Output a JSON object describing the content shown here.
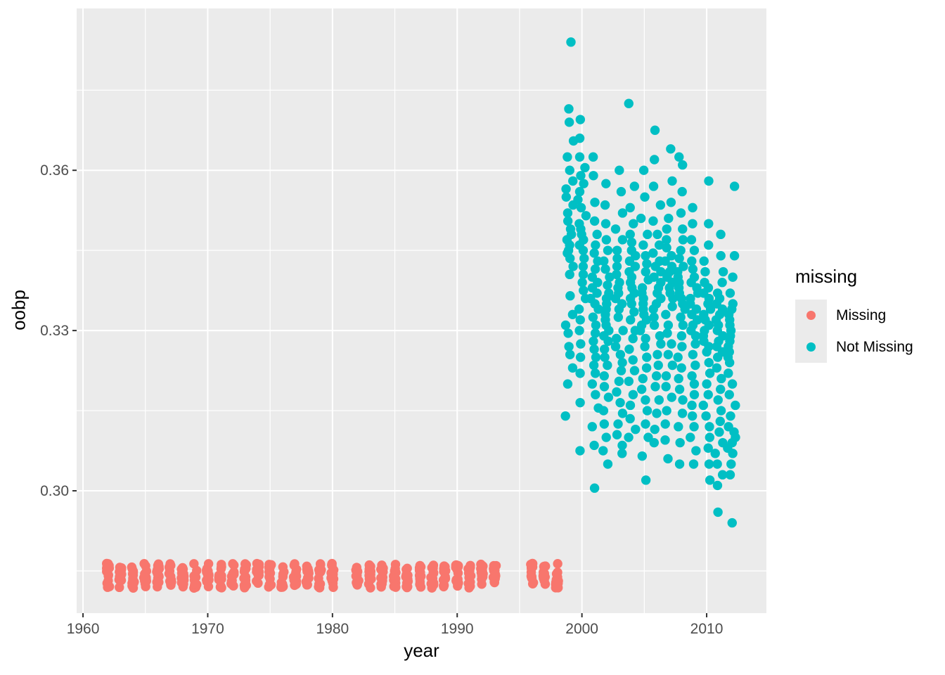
{
  "chart_data": {
    "type": "scatter",
    "title": "",
    "xlabel": "year",
    "ylabel": "oobp",
    "x_range": [
      1959.49,
      2014.79
    ],
    "y_range": [
      0.2771,
      0.3903
    ],
    "x_ticks": [
      {
        "v": 1960,
        "label": "1960"
      },
      {
        "v": 1970,
        "label": "1970"
      },
      {
        "v": 1980,
        "label": "1980"
      },
      {
        "v": 1990,
        "label": "1990"
      },
      {
        "v": 2000,
        "label": "2000"
      },
      {
        "v": 2010,
        "label": "2010"
      }
    ],
    "x_minor": [
      1965,
      1975,
      1985,
      1995,
      2005
    ],
    "y_ticks": [
      {
        "v": 0.3,
        "label": "0.30"
      },
      {
        "v": 0.33,
        "label": "0.33"
      },
      {
        "v": 0.36,
        "label": "0.36"
      }
    ],
    "y_minor": [
      0.285,
      0.315,
      0.345,
      0.375
    ],
    "panel_bg": "#ebebeb",
    "grid_color": "#ffffff",
    "tick_color": "#333333",
    "tick_label_color": "#4d4d4d",
    "point_radius": 6.7,
    "legend": {
      "title": "missing",
      "entries": [
        {
          "label": "Missing",
          "color": "#F8766D"
        },
        {
          "label": "Not Missing",
          "color": "#00BFC4"
        }
      ]
    },
    "series": [
      {
        "name": "Missing",
        "color": "#F8766D",
        "kind": "jitter-band",
        "jitter_x": 0.12,
        "points_per_year": 14,
        "oobp_band": [
          0.2818,
          0.2864
        ],
        "years": [
          1962,
          1963,
          1964,
          1965,
          1966,
          1967,
          1968,
          1969,
          1970,
          1971,
          1972,
          1973,
          1974,
          1975,
          1976,
          1977,
          1978,
          1979,
          1980,
          1982,
          1983,
          1984,
          1985,
          1986,
          1987,
          1988,
          1989,
          1990,
          1991,
          1992,
          1993,
          1996,
          1997,
          1998
        ]
      },
      {
        "name": "Not Missing",
        "color": "#00BFC4",
        "kind": "values",
        "jitter_x": 0.33,
        "values_by_year": {
          "1999": [
            0.384,
            0.3715,
            0.369,
            0.3655,
            0.3625,
            0.36,
            0.358,
            0.3565,
            0.355,
            0.3535,
            0.352,
            0.3505,
            0.349,
            0.348,
            0.347,
            0.346,
            0.345,
            0.3445,
            0.3435,
            0.342,
            0.3405,
            0.3365,
            0.333,
            0.331,
            0.3295,
            0.327,
            0.3255,
            0.323,
            0.32,
            0.314
          ],
          "2000": [
            0.3695,
            0.366,
            0.3625,
            0.3605,
            0.359,
            0.3575,
            0.356,
            0.3545,
            0.353,
            0.3515,
            0.35,
            0.349,
            0.348,
            0.347,
            0.346,
            0.345,
            0.3435,
            0.342,
            0.3405,
            0.339,
            0.3375,
            0.336,
            0.334,
            0.332,
            0.33,
            0.3275,
            0.325,
            0.322,
            0.3165,
            0.3075
          ],
          "2001": [
            0.3625,
            0.359,
            0.354,
            0.3505,
            0.348,
            0.346,
            0.3445,
            0.343,
            0.3415,
            0.34,
            0.339,
            0.338,
            0.337,
            0.336,
            0.335,
            0.334,
            0.3325,
            0.331,
            0.3295,
            0.328,
            0.3265,
            0.325,
            0.3235,
            0.322,
            0.32,
            0.318,
            0.3155,
            0.312,
            0.3085,
            0.3005
          ],
          "2002": [
            0.3575,
            0.3535,
            0.35,
            0.347,
            0.345,
            0.343,
            0.3415,
            0.34,
            0.3385,
            0.337,
            0.336,
            0.335,
            0.334,
            0.333,
            0.332,
            0.331,
            0.33,
            0.329,
            0.328,
            0.3265,
            0.325,
            0.3235,
            0.3215,
            0.3195,
            0.3175,
            0.315,
            0.3125,
            0.31,
            0.3075,
            0.305
          ],
          "2003": [
            0.36,
            0.356,
            0.352,
            0.349,
            0.347,
            0.345,
            0.3435,
            0.342,
            0.3405,
            0.339,
            0.338,
            0.337,
            0.336,
            0.335,
            0.334,
            0.3325,
            0.33,
            0.3285,
            0.327,
            0.3255,
            0.324,
            0.3225,
            0.3205,
            0.3185,
            0.3165,
            0.3145,
            0.3125,
            0.3105,
            0.3085,
            0.307
          ],
          "2004": [
            0.3725,
            0.357,
            0.353,
            0.35,
            0.348,
            0.3465,
            0.345,
            0.344,
            0.343,
            0.342,
            0.341,
            0.34,
            0.339,
            0.338,
            0.337,
            0.336,
            0.335,
            0.3335,
            0.332,
            0.33,
            0.3285,
            0.3265,
            0.3245,
            0.3225,
            0.3205,
            0.318,
            0.316,
            0.3135,
            0.3115,
            0.31
          ],
          "2005": [
            0.36,
            0.355,
            0.351,
            0.348,
            0.346,
            0.344,
            0.3425,
            0.341,
            0.3395,
            0.338,
            0.337,
            0.336,
            0.335,
            0.334,
            0.333,
            0.332,
            0.331,
            0.33,
            0.3285,
            0.327,
            0.325,
            0.323,
            0.321,
            0.319,
            0.317,
            0.315,
            0.3125,
            0.31,
            0.3065,
            0.302
          ],
          "2006": [
            0.3675,
            0.362,
            0.357,
            0.3535,
            0.3505,
            0.348,
            0.346,
            0.3445,
            0.343,
            0.342,
            0.341,
            0.34,
            0.339,
            0.338,
            0.337,
            0.336,
            0.335,
            0.334,
            0.3325,
            0.331,
            0.329,
            0.3275,
            0.3255,
            0.3235,
            0.3215,
            0.3195,
            0.317,
            0.3145,
            0.3115,
            0.309
          ],
          "2007": [
            0.364,
            0.358,
            0.354,
            0.351,
            0.349,
            0.347,
            0.3455,
            0.344,
            0.343,
            0.342,
            0.341,
            0.34,
            0.339,
            0.338,
            0.337,
            0.336,
            0.3345,
            0.333,
            0.331,
            0.3295,
            0.3275,
            0.3255,
            0.3235,
            0.3215,
            0.3195,
            0.3175,
            0.315,
            0.3125,
            0.3095,
            0.306
          ],
          "2008": [
            0.3625,
            0.361,
            0.356,
            0.352,
            0.349,
            0.347,
            0.345,
            0.3435,
            0.342,
            0.341,
            0.34,
            0.339,
            0.338,
            0.337,
            0.336,
            0.335,
            0.334,
            0.3325,
            0.331,
            0.329,
            0.327,
            0.325,
            0.323,
            0.321,
            0.319,
            0.317,
            0.3145,
            0.312,
            0.309,
            0.305
          ],
          "2009": [
            0.353,
            0.35,
            0.347,
            0.345,
            0.343,
            0.3415,
            0.34,
            0.339,
            0.338,
            0.337,
            0.336,
            0.335,
            0.334,
            0.333,
            0.332,
            0.331,
            0.33,
            0.329,
            0.3275,
            0.3255,
            0.3235,
            0.3215,
            0.32,
            0.318,
            0.316,
            0.314,
            0.312,
            0.31,
            0.3075,
            0.305
          ],
          "2010": [
            0.358,
            0.35,
            0.346,
            0.343,
            0.341,
            0.339,
            0.338,
            0.337,
            0.336,
            0.335,
            0.334,
            0.333,
            0.332,
            0.331,
            0.33,
            0.329,
            0.328,
            0.327,
            0.326,
            0.324,
            0.322,
            0.32,
            0.318,
            0.316,
            0.314,
            0.312,
            0.31,
            0.308,
            0.305,
            0.302
          ],
          "2011": [
            0.348,
            0.344,
            0.341,
            0.339,
            0.337,
            0.336,
            0.335,
            0.334,
            0.333,
            0.332,
            0.331,
            0.33,
            0.329,
            0.328,
            0.327,
            0.326,
            0.325,
            0.323,
            0.321,
            0.319,
            0.317,
            0.315,
            0.313,
            0.311,
            0.309,
            0.307,
            0.305,
            0.303,
            0.301,
            0.296
          ],
          "2012": [
            0.357,
            0.344,
            0.34,
            0.337,
            0.335,
            0.334,
            0.333,
            0.332,
            0.331,
            0.33,
            0.329,
            0.328,
            0.327,
            0.326,
            0.325,
            0.324,
            0.322,
            0.32,
            0.318,
            0.316,
            0.314,
            0.312,
            0.311,
            0.31,
            0.309,
            0.308,
            0.307,
            0.305,
            0.303,
            0.294
          ]
        }
      }
    ]
  }
}
